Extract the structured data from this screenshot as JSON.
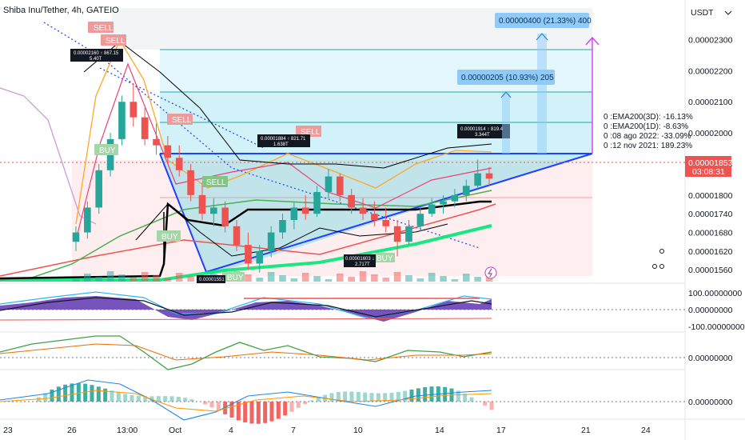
{
  "title": "Shiba Inu/Tether, 4h, GATEIO",
  "currency": "USDT",
  "price": {
    "current": "0.00001853",
    "countdown": "03:08:31",
    "ticks": [
      "0.00002300",
      "0.00002200",
      "0.00002100",
      "0.00002000",
      "0.00001900",
      "0.00001800",
      "0.00001740",
      "0.00001680",
      "0.00001620",
      "0.00001560"
    ]
  },
  "osc_ticks": [
    "100.00000000",
    "0.00000000",
    "-100.00000000"
  ],
  "rsi_ticks": [
    "0.00000000"
  ],
  "macd_ticks": [
    "0.00000000"
  ],
  "time_ticks": [
    "23",
    "26",
    "13:00",
    "Oct",
    "4",
    "7",
    "10",
    "14",
    "17",
    "21",
    "24"
  ],
  "targets": [
    {
      "label": "0.00000400 (21.33%) 400"
    },
    {
      "label": "0.00000205 (10.93%) 205"
    }
  ],
  "info_lines": [
    "0 :EMA200(3D): -16.13%",
    "0 :EMA200(1D): -8.63%",
    "0 :08 ago 2022: -33.09%",
    "0 :12 nov 2021: 189.23%"
  ],
  "signals": {
    "sell": "SELL",
    "buy": "BUY"
  },
  "callouts": [
    {
      "line1": "0.00002160 ↑ 867.15",
      "line2": "5.40T"
    },
    {
      "line1": "0.00001884 ↑ 821.71",
      "line2": "1.638T"
    },
    {
      "line1": "0.00001914 ↑ 819.4",
      "line2": "3.344T"
    },
    {
      "line1": "0.00001603 ↓",
      "line2": "2.717T"
    },
    {
      "line1": "0.00001551",
      "line2": ""
    }
  ],
  "colors": {
    "up": "#26a69a",
    "down": "#ef5350",
    "accent": "#2962ff",
    "pill": "#90caf9"
  },
  "chart_data": {
    "type": "candlestick",
    "symbol": "Shiba Inu/Tether",
    "interval": "4h",
    "exchange": "GATEIO",
    "y_range": [
      1.54e-05,
      2.35e-05
    ],
    "last_price": 1.853e-05,
    "x_ticks": [
      "23",
      "26",
      "13:00",
      "Oct",
      "4",
      "7",
      "10",
      "14",
      "17",
      "21",
      "24"
    ],
    "ohlc": [
      [
        1.65e-05,
        1.7e-05,
        1.62e-05,
        1.68e-05
      ],
      [
        1.68e-05,
        1.78e-05,
        1.66e-05,
        1.76e-05
      ],
      [
        1.76e-05,
        1.9e-05,
        1.74e-05,
        1.88e-05
      ],
      [
        1.88e-05,
        2e-05,
        1.86e-05,
        1.98e-05
      ],
      [
        1.98e-05,
        2.12e-05,
        1.96e-05,
        2.1e-05
      ],
      [
        2.1e-05,
        2.16e-05,
        2.02e-05,
        2.05e-05
      ],
      [
        2.05e-05,
        2.08e-05,
        1.96e-05,
        1.98e-05
      ],
      [
        1.98e-05,
        2.03e-05,
        1.93e-05,
        1.96e-05
      ],
      [
        1.96e-05,
        1.99e-05,
        1.9e-05,
        1.92e-05
      ],
      [
        1.92e-05,
        1.96e-05,
        1.86e-05,
        1.88e-05
      ],
      [
        1.88e-05,
        1.9e-05,
        1.78e-05,
        1.8e-05
      ],
      [
        1.8e-05,
        1.84e-05,
        1.72e-05,
        1.74e-05
      ],
      [
        1.74e-05,
        1.79e-05,
        1.7e-05,
        1.76e-05
      ],
      [
        1.76e-05,
        1.78e-05,
        1.68e-05,
        1.7e-05
      ],
      [
        1.7e-05,
        1.72e-05,
        1.62e-05,
        1.64e-05
      ],
      [
        1.64e-05,
        1.68e-05,
        1.56e-05,
        1.58e-05
      ],
      [
        1.58e-05,
        1.64e-05,
        1.551e-05,
        1.62e-05
      ],
      [
        1.62e-05,
        1.7e-05,
        1.6e-05,
        1.68e-05
      ],
      [
        1.68e-05,
        1.74e-05,
        1.66e-05,
        1.72e-05
      ],
      [
        1.72e-05,
        1.78e-05,
        1.69e-05,
        1.76e-05
      ],
      [
        1.76e-05,
        1.8e-05,
        1.72e-05,
        1.74e-05
      ],
      [
        1.74e-05,
        1.83e-05,
        1.73e-05,
        1.81e-05
      ],
      [
        1.81e-05,
        1.884e-05,
        1.79e-05,
        1.86e-05
      ],
      [
        1.86e-05,
        1.87e-05,
        1.78e-05,
        1.8e-05
      ],
      [
        1.8e-05,
        1.82e-05,
        1.74e-05,
        1.76e-05
      ],
      [
        1.76e-05,
        1.79e-05,
        1.72e-05,
        1.74e-05
      ],
      [
        1.74e-05,
        1.78e-05,
        1.7e-05,
        1.72e-05
      ],
      [
        1.72e-05,
        1.76e-05,
        1.68e-05,
        1.7e-05
      ],
      [
        1.7e-05,
        1.72e-05,
        1.603e-05,
        1.65e-05
      ],
      [
        1.65e-05,
        1.72e-05,
        1.64e-05,
        1.7e-05
      ],
      [
        1.7e-05,
        1.76e-05,
        1.69e-05,
        1.74e-05
      ],
      [
        1.74e-05,
        1.79e-05,
        1.73e-05,
        1.77e-05
      ],
      [
        1.77e-05,
        1.8e-05,
        1.74e-05,
        1.78e-05
      ],
      [
        1.78e-05,
        1.82e-05,
        1.76e-05,
        1.8e-05
      ],
      [
        1.8e-05,
        1.85e-05,
        1.78e-05,
        1.83e-05
      ],
      [
        1.83e-05,
        1.914e-05,
        1.82e-05,
        1.87e-05
      ],
      [
        1.87e-05,
        1.89e-05,
        1.83e-05,
        1.853e-05
      ]
    ]
  }
}
